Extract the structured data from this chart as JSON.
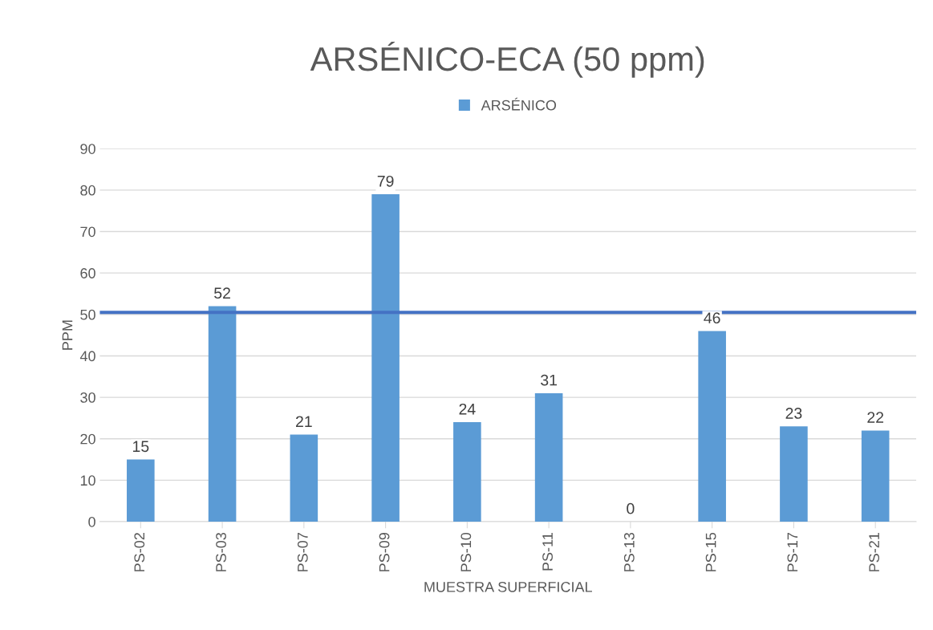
{
  "chart_data": {
    "type": "bar",
    "title": "ARSÉNICO-ECA (50 ppm)",
    "xlabel": "MUESTRA SUPERFICIAL",
    "ylabel": "PPM",
    "categories": [
      "PS-02",
      "PS-03",
      "PS-07",
      "PS-09",
      "PS-10",
      "PS-11",
      "PS-13",
      "PS-15",
      "PS-17",
      "PS-21"
    ],
    "series": [
      {
        "name": "ARSÉNICO",
        "color": "#5b9bd5",
        "values": [
          15,
          52,
          21,
          79,
          24,
          31,
          0,
          46,
          23,
          22
        ]
      }
    ],
    "ylim": [
      0,
      90
    ],
    "yticks": [
      0,
      10,
      20,
      30,
      40,
      50,
      60,
      70,
      80,
      90
    ],
    "ref_lines": [
      {
        "axis": "y",
        "value": 50.5,
        "color": "#4472c4",
        "line_style": "solid"
      }
    ],
    "data_labels": true,
    "grid": "y",
    "legend": "top"
  }
}
